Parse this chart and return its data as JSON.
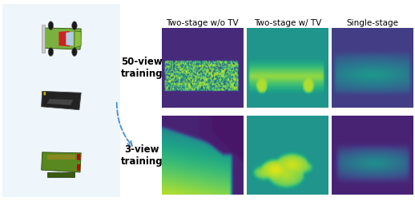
{
  "col_headers": [
    "Two-stage w/o TV",
    "Two-stage w/ TV",
    "Single-stage"
  ],
  "row_labels": [
    "50-view\ntraining",
    "3-view\ntraining"
  ],
  "col_header_fontsize": 7.5,
  "row_label_fontsize": 8.5,
  "row_label_fontweight": "bold",
  "background_color": "#ffffff",
  "dashed_box_color": "#5b9bd5",
  "left_panel_bg": "#eef5fb",
  "arrow_color": "#4a90c8",
  "fig_width": 5.18,
  "fig_height": 2.52,
  "dpi": 100
}
